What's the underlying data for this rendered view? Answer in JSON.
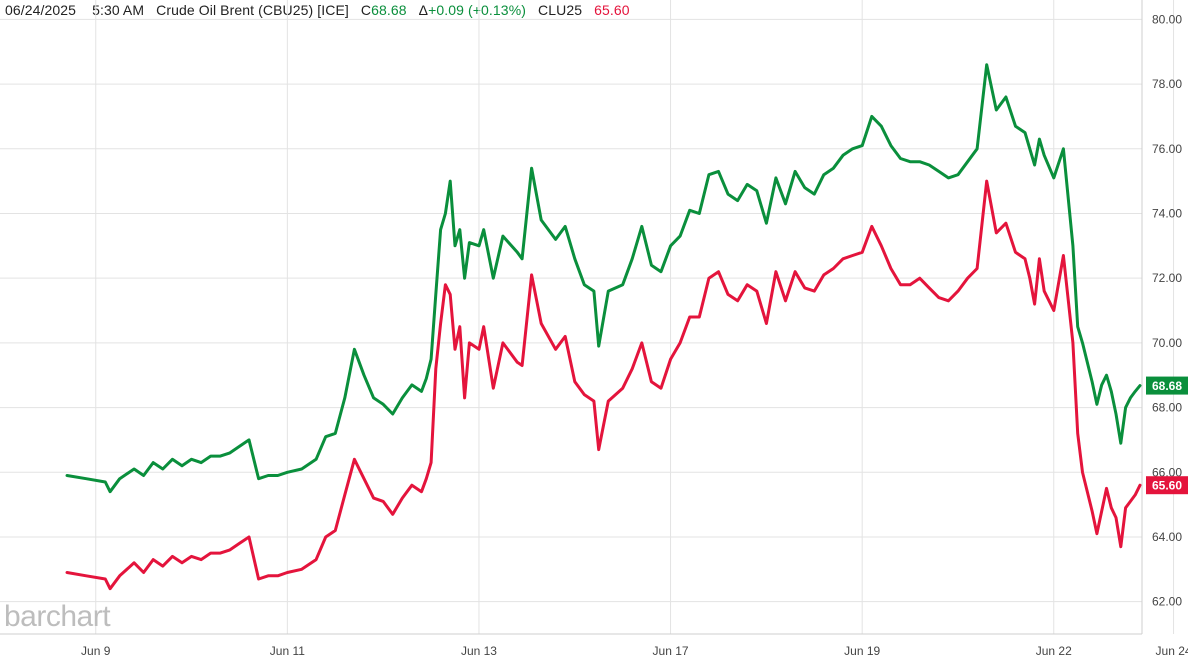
{
  "header": {
    "date": "06/24/2025",
    "time": "5:30 AM",
    "instrument": "Crude Oil Brent (CBU25) [ICE]",
    "close_prefix": "C",
    "close_value": "68.68",
    "change_prefix": "Δ",
    "change_value": "+0.09 (+0.13%)",
    "compare_symbol": "CLU25",
    "compare_value": "65.60"
  },
  "logo": "barchart",
  "colors": {
    "brent": "#0a8f3c",
    "wti": "#e4143c",
    "grid": "#e3e3e3",
    "text": "#222222"
  },
  "chart_data": {
    "type": "line",
    "title": "",
    "xlabel": "",
    "ylabel": "",
    "ylim": [
      61.0,
      80.6
    ],
    "yticks": [
      62.0,
      64.0,
      66.0,
      68.0,
      70.0,
      72.0,
      74.0,
      76.0,
      78.0,
      80.0
    ],
    "ytick_labels": [
      "62.00",
      "64.00",
      "66.00",
      "68.00",
      "70.00",
      "72.00",
      "74.00",
      "76.00",
      "78.00",
      "80.00"
    ],
    "xlim": [
      0.0,
      11.2
    ],
    "xticks": [
      0.3,
      2.3,
      4.3,
      6.3,
      8.3,
      10.3,
      11.55
    ],
    "xtick_labels": [
      "Jun 9",
      "Jun 11",
      "Jun 13",
      "Jun 17",
      "Jun 19",
      "Jun 22",
      "Jun 24"
    ],
    "grid": true,
    "last_prices": {
      "Crude Oil Brent (CBU25)": "68.68",
      "CLU25": "65.60"
    },
    "series": [
      {
        "name": "Crude Oil Brent (CBU25)",
        "color": "#0a8f3c",
        "x": [
          0.0,
          0.2,
          0.4,
          0.45,
          0.55,
          0.7,
          0.8,
          0.9,
          1.0,
          1.1,
          1.2,
          1.3,
          1.4,
          1.5,
          1.6,
          1.7,
          1.8,
          1.9,
          2.0,
          2.1,
          2.2,
          2.3,
          2.45,
          2.6,
          2.7,
          2.8,
          2.9,
          3.0,
          3.1,
          3.2,
          3.3,
          3.4,
          3.5,
          3.6,
          3.7,
          3.75,
          3.8,
          3.85,
          3.9,
          3.95,
          4.0,
          4.05,
          4.1,
          4.15,
          4.2,
          4.3,
          4.35,
          4.45,
          4.55,
          4.7,
          4.75,
          4.85,
          4.95,
          5.1,
          5.2,
          5.3,
          5.4,
          5.5,
          5.55,
          5.65,
          5.8,
          5.9,
          6.0,
          6.1,
          6.2,
          6.3,
          6.4,
          6.5,
          6.6,
          6.7,
          6.8,
          6.9,
          7.0,
          7.1,
          7.2,
          7.3,
          7.4,
          7.5,
          7.6,
          7.7,
          7.8,
          7.9,
          8.0,
          8.1,
          8.2,
          8.3,
          8.4,
          8.5,
          8.6,
          8.7,
          8.8,
          8.9,
          9.0,
          9.1,
          9.2,
          9.3,
          9.4,
          9.5,
          9.6,
          9.7,
          9.8,
          9.9,
          10.0,
          10.05,
          10.1,
          10.15,
          10.2,
          10.3,
          10.4,
          10.5,
          10.55,
          10.6,
          10.7,
          10.75,
          10.8,
          10.85,
          10.9,
          10.95,
          11.0,
          11.05,
          11.1,
          11.15,
          11.2
        ],
        "values": [
          65.9,
          65.8,
          65.7,
          65.4,
          65.8,
          66.1,
          65.9,
          66.3,
          66.1,
          66.4,
          66.2,
          66.4,
          66.3,
          66.5,
          66.5,
          66.6,
          66.8,
          67.0,
          65.8,
          65.9,
          65.9,
          66.0,
          66.1,
          66.4,
          67.1,
          67.2,
          68.3,
          69.8,
          69.0,
          68.3,
          68.1,
          67.8,
          68.3,
          68.7,
          68.5,
          68.9,
          69.5,
          71.5,
          73.5,
          74.0,
          75.0,
          73.0,
          73.5,
          72.0,
          73.1,
          73.0,
          73.5,
          72.0,
          73.3,
          72.8,
          72.6,
          75.4,
          73.8,
          73.2,
          73.6,
          72.6,
          71.8,
          71.6,
          69.9,
          71.6,
          71.8,
          72.6,
          73.6,
          72.4,
          72.2,
          73.0,
          73.3,
          74.1,
          74.0,
          75.2,
          75.3,
          74.6,
          74.4,
          74.9,
          74.7,
          73.7,
          75.1,
          74.3,
          75.3,
          74.8,
          74.6,
          75.2,
          75.4,
          75.8,
          76.0,
          76.1,
          77.0,
          76.7,
          76.1,
          75.7,
          75.6,
          75.6,
          75.5,
          75.3,
          75.1,
          75.2,
          75.6,
          76.0,
          78.6,
          77.2,
          77.6,
          76.7,
          76.5,
          76.0,
          75.5,
          76.3,
          75.8,
          75.1,
          76.0,
          73.0,
          70.5,
          70.0,
          68.8,
          68.1,
          68.7,
          69.0,
          68.5,
          67.8,
          66.9,
          68.0,
          68.3,
          68.5,
          68.68
        ]
      },
      {
        "name": "CLU25",
        "color": "#e4143c",
        "x": [
          0.0,
          0.2,
          0.4,
          0.45,
          0.55,
          0.7,
          0.8,
          0.9,
          1.0,
          1.1,
          1.2,
          1.3,
          1.4,
          1.5,
          1.6,
          1.7,
          1.8,
          1.9,
          2.0,
          2.1,
          2.2,
          2.3,
          2.45,
          2.6,
          2.7,
          2.8,
          2.9,
          3.0,
          3.1,
          3.2,
          3.3,
          3.4,
          3.5,
          3.6,
          3.7,
          3.75,
          3.8,
          3.85,
          3.9,
          3.95,
          4.0,
          4.05,
          4.1,
          4.15,
          4.2,
          4.3,
          4.35,
          4.45,
          4.55,
          4.7,
          4.75,
          4.85,
          4.95,
          5.1,
          5.2,
          5.3,
          5.4,
          5.5,
          5.55,
          5.65,
          5.8,
          5.9,
          6.0,
          6.1,
          6.2,
          6.3,
          6.4,
          6.5,
          6.6,
          6.7,
          6.8,
          6.9,
          7.0,
          7.1,
          7.2,
          7.3,
          7.4,
          7.5,
          7.6,
          7.7,
          7.8,
          7.9,
          8.0,
          8.1,
          8.2,
          8.3,
          8.4,
          8.5,
          8.6,
          8.7,
          8.8,
          8.9,
          9.0,
          9.1,
          9.2,
          9.3,
          9.4,
          9.5,
          9.6,
          9.7,
          9.8,
          9.9,
          10.0,
          10.05,
          10.1,
          10.15,
          10.2,
          10.3,
          10.4,
          10.5,
          10.55,
          10.6,
          10.7,
          10.75,
          10.8,
          10.85,
          10.9,
          10.95,
          11.0,
          11.05,
          11.1,
          11.15,
          11.2
        ],
        "values": [
          62.9,
          62.8,
          62.7,
          62.4,
          62.8,
          63.2,
          62.9,
          63.3,
          63.1,
          63.4,
          63.2,
          63.4,
          63.3,
          63.5,
          63.5,
          63.6,
          63.8,
          64.0,
          62.7,
          62.8,
          62.8,
          62.9,
          63.0,
          63.3,
          64.0,
          64.2,
          65.3,
          66.4,
          65.8,
          65.2,
          65.1,
          64.7,
          65.2,
          65.6,
          65.4,
          65.8,
          66.3,
          69.2,
          70.6,
          71.8,
          71.5,
          69.8,
          70.5,
          68.3,
          70.0,
          69.8,
          70.5,
          68.6,
          70.0,
          69.4,
          69.3,
          72.1,
          70.6,
          69.8,
          70.2,
          68.8,
          68.4,
          68.2,
          66.7,
          68.2,
          68.6,
          69.2,
          70.0,
          68.8,
          68.6,
          69.5,
          70.0,
          70.8,
          70.8,
          72.0,
          72.2,
          71.5,
          71.3,
          71.8,
          71.6,
          70.6,
          72.2,
          71.3,
          72.2,
          71.7,
          71.6,
          72.1,
          72.3,
          72.6,
          72.7,
          72.8,
          73.6,
          73.0,
          72.3,
          71.8,
          71.8,
          72.0,
          71.7,
          71.4,
          71.3,
          71.6,
          72.0,
          72.3,
          75.0,
          73.4,
          73.7,
          72.8,
          72.6,
          72.0,
          71.2,
          72.6,
          71.6,
          71.0,
          72.7,
          70.0,
          67.2,
          66.0,
          64.8,
          64.1,
          64.8,
          65.5,
          64.9,
          64.6,
          63.7,
          64.9,
          65.1,
          65.3,
          65.6
        ]
      }
    ]
  }
}
